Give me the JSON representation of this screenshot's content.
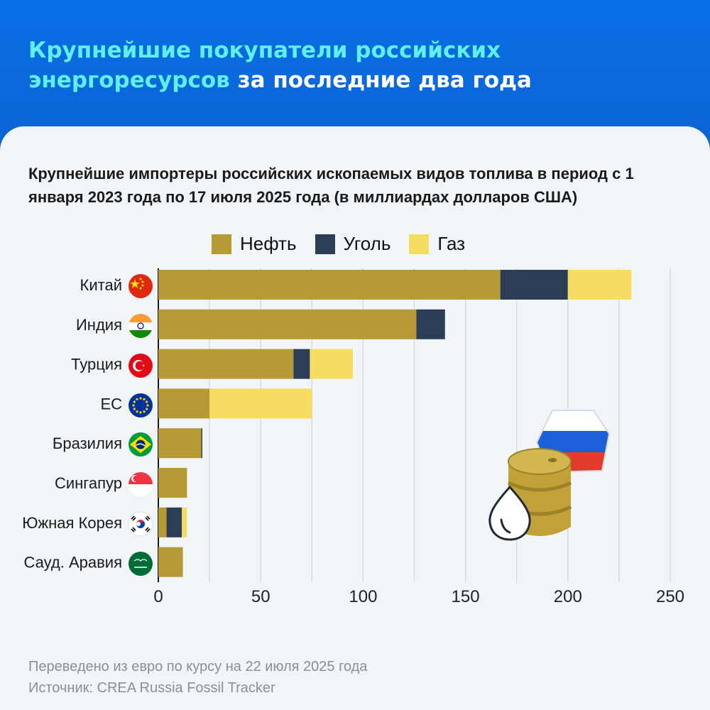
{
  "header": {
    "title_highlight": "Крупнейшие покупатели российских энергоресурсов",
    "title_rest": "за последние два года"
  },
  "chart_data": {
    "type": "bar",
    "orientation": "horizontal",
    "stacked": true,
    "title": "Крупнейшие импортеры российских ископаемых видов топлива в период с 1 января 2023 года по 17 июля 2025 года (в миллиардах долларов США)",
    "categories": [
      "Китай",
      "Индия",
      "Турция",
      "ЕС",
      "Бразилия",
      "Сингапур",
      "Южная Корея",
      "Сауд. Аравия"
    ],
    "series": [
      {
        "name": "Нефть",
        "color": "#b59a35",
        "values": [
          167,
          126,
          66,
          25,
          21,
          14,
          4,
          12
        ]
      },
      {
        "name": "Уголь",
        "color": "#2c3e55",
        "values": [
          33,
          14,
          8,
          0,
          0.5,
          0,
          7.5,
          0
        ]
      },
      {
        "name": "Газ",
        "color": "#f7dc62",
        "values": [
          31,
          0,
          21,
          50,
          0,
          0,
          2.5,
          0
        ]
      }
    ],
    "xticks": [
      "0",
      "50",
      "100",
      "150",
      "200",
      "250"
    ],
    "xlim": [
      0,
      250
    ],
    "grid": true,
    "legend": "top"
  },
  "footer": {
    "note": "Переведено из евро по курсу на 22 июля 2025 года",
    "source": "Источник: CREA Russia Fossil Tracker"
  },
  "icons": [
    "flag-china-icon",
    "flag-india-icon",
    "flag-turkey-icon",
    "flag-eu-icon",
    "flag-brazil-icon",
    "flag-singapore-icon",
    "flag-south-korea-icon",
    "flag-saudi-arabia-icon",
    "oil-barrel-icon",
    "oil-drop-icon",
    "russian-flag-icon"
  ]
}
